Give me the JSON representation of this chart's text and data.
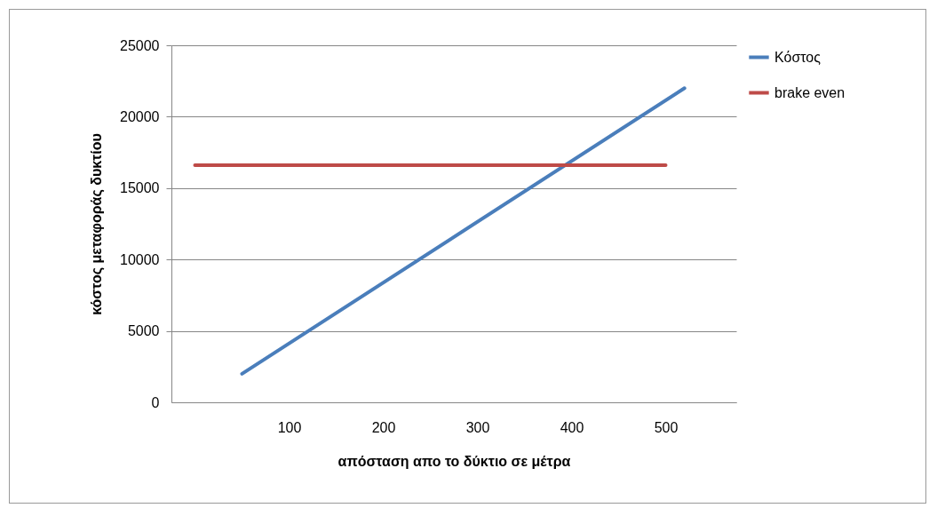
{
  "chart_data": {
    "type": "line",
    "xlabel": "απόσταση απο το δύκτιο σε μέτρα",
    "ylabel": "κόστος μεταφοράς δυκτίου",
    "series": [
      {
        "name": "Κόστος",
        "color": "#4a7ebb",
        "x": [
          50,
          520
        ],
        "values": [
          2000,
          22000
        ]
      },
      {
        "name": "brake even",
        "color": "#be4b48",
        "x": [
          0,
          500
        ],
        "values": [
          16600,
          16600
        ]
      }
    ],
    "xlim": [
      -25,
      575
    ],
    "xticks": [
      100,
      200,
      300,
      400,
      500
    ],
    "ylim": [
      0,
      25000
    ],
    "yticks": [
      0,
      5000,
      10000,
      15000,
      20000,
      25000
    ],
    "grid": "y",
    "legend": "right",
    "marker": "none",
    "line_style": "solid"
  }
}
